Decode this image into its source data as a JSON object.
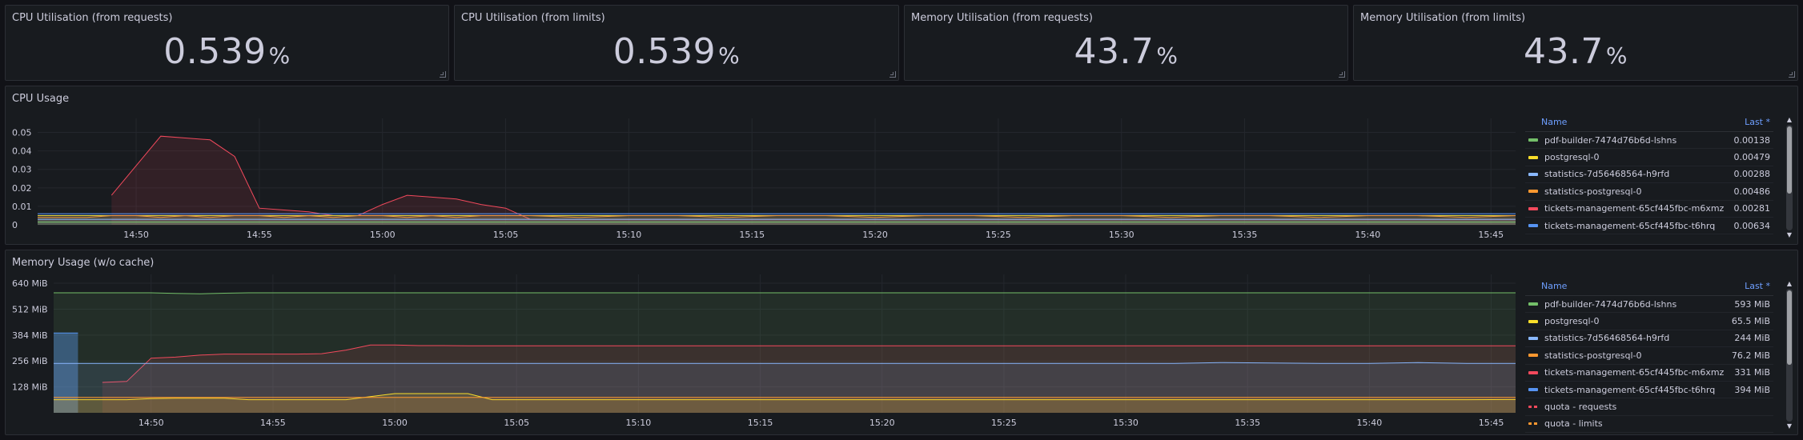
{
  "stats": [
    {
      "title": "CPU Utilisation (from requests)",
      "value": "0.539",
      "unit": "%"
    },
    {
      "title": "CPU Utilisation (from limits)",
      "value": "0.539",
      "unit": "%"
    },
    {
      "title": "Memory Utilisation (from requests)",
      "value": "43.7",
      "unit": "%"
    },
    {
      "title": "Memory Utilisation (from limits)",
      "value": "43.7",
      "unit": "%"
    }
  ],
  "cpu_panel": {
    "title": "CPU Usage",
    "legend_header": {
      "name": "Name",
      "last": "Last *"
    },
    "legend": [
      {
        "name": "pdf-builder-7474d76b6d-lshns",
        "last": "0.00138",
        "color": "#73bf69"
      },
      {
        "name": "postgresql-0",
        "last": "0.00479",
        "color": "#fade2a"
      },
      {
        "name": "statistics-7d56468564-h9rfd",
        "last": "0.00288",
        "color": "#8ab8ff"
      },
      {
        "name": "statistics-postgresql-0",
        "last": "0.00486",
        "color": "#ff9830"
      },
      {
        "name": "tickets-management-65cf445fbc-m6xmz",
        "last": "0.00281",
        "color": "#f2495c"
      },
      {
        "name": "tickets-management-65cf445fbc-t6hrq",
        "last": "0.00634",
        "color": "#5794f2"
      }
    ]
  },
  "mem_panel": {
    "title": "Memory Usage (w/o cache)",
    "legend_header": {
      "name": "Name",
      "last": "Last *"
    },
    "legend": [
      {
        "name": "pdf-builder-7474d76b6d-lshns",
        "last": "593 MiB",
        "color": "#73bf69",
        "style": "solid"
      },
      {
        "name": "postgresql-0",
        "last": "65.5 MiB",
        "color": "#fade2a",
        "style": "solid"
      },
      {
        "name": "statistics-7d56468564-h9rfd",
        "last": "244 MiB",
        "color": "#8ab8ff",
        "style": "solid"
      },
      {
        "name": "statistics-postgresql-0",
        "last": "76.2 MiB",
        "color": "#ff9830",
        "style": "solid"
      },
      {
        "name": "tickets-management-65cf445fbc-m6xmz",
        "last": "331 MiB",
        "color": "#f2495c",
        "style": "solid"
      },
      {
        "name": "tickets-management-65cf445fbc-t6hrq",
        "last": "394 MiB",
        "color": "#5794f2",
        "style": "solid"
      },
      {
        "name": "quota - requests",
        "last": "",
        "color": "#f2495c",
        "style": "dashed"
      },
      {
        "name": "quota - limits",
        "last": "",
        "color": "#ff9830",
        "style": "dashed"
      }
    ]
  },
  "chart_data": [
    {
      "type": "line",
      "title": "CPU Usage",
      "x": [
        "14:46",
        "14:47",
        "14:48",
        "14:49",
        "14:50",
        "14:51",
        "14:52",
        "14:53",
        "14:54",
        "14:55",
        "14:56",
        "14:57",
        "14:58",
        "14:59",
        "15:00",
        "15:01",
        "15:02",
        "15:03",
        "15:04",
        "15:05",
        "15:06",
        "15:08",
        "15:10",
        "15:12",
        "15:14",
        "15:16",
        "15:18",
        "15:20",
        "15:22",
        "15:24",
        "15:26",
        "15:28",
        "15:30",
        "15:32",
        "15:34",
        "15:36",
        "15:38",
        "15:40",
        "15:42",
        "15:44",
        "15:46"
      ],
      "x_ticks": [
        "14:50",
        "14:55",
        "15:00",
        "15:05",
        "15:10",
        "15:15",
        "15:20",
        "15:25",
        "15:30",
        "15:35",
        "15:40",
        "15:45"
      ],
      "y_ticks": [
        "0",
        "0.01",
        "0.02",
        "0.03",
        "0.04",
        "0.05"
      ],
      "ylim": [
        0,
        0.055
      ],
      "series": [
        {
          "name": "tickets-management-65cf445fbc-m6xmz",
          "color": "#f2495c",
          "values": [
            null,
            null,
            null,
            0.016,
            0.032,
            0.048,
            0.047,
            0.046,
            0.037,
            0.009,
            0.008,
            0.007,
            0.005,
            0.005,
            0.011,
            0.016,
            0.015,
            0.014,
            0.011,
            0.009,
            0.003,
            0.003,
            0.003,
            0.003,
            0.003,
            0.003,
            0.003,
            0.003,
            0.003,
            0.003,
            0.003,
            0.003,
            0.003,
            0.003,
            0.003,
            0.003,
            0.003,
            0.003,
            0.003,
            0.003,
            0.003
          ]
        },
        {
          "name": "postgresql-0",
          "color": "#fade2a",
          "values": [
            0.005,
            0.005,
            0.005,
            0.005,
            0.005,
            0.005,
            0.005,
            0.005,
            0.005,
            0.005,
            0.005,
            0.005,
            0.005,
            0.005,
            0.005,
            0.005,
            0.005,
            0.005,
            0.005,
            0.005,
            0.005,
            0.005,
            0.005,
            0.005,
            0.005,
            0.005,
            0.005,
            0.005,
            0.005,
            0.005,
            0.005,
            0.005,
            0.005,
            0.005,
            0.005,
            0.005,
            0.005,
            0.005,
            0.005,
            0.005,
            0.005
          ]
        },
        {
          "name": "statistics-postgresql-0",
          "color": "#ff9830",
          "values": [
            0.004,
            0.004,
            0.004,
            0.005,
            0.005,
            0.004,
            0.005,
            0.004,
            0.005,
            0.005,
            0.004,
            0.005,
            0.004,
            0.005,
            0.005,
            0.004,
            0.005,
            0.004,
            0.005,
            0.005,
            0.005,
            0.004,
            0.005,
            0.005,
            0.004,
            0.005,
            0.005,
            0.004,
            0.005,
            0.005,
            0.004,
            0.005,
            0.005,
            0.004,
            0.005,
            0.005,
            0.004,
            0.005,
            0.005,
            0.004,
            0.005
          ]
        },
        {
          "name": "tickets-management-65cf445fbc-t6hrq",
          "color": "#5794f2",
          "values": [
            0.006,
            0.006,
            0.006,
            0.006,
            0.006,
            0.006,
            0.006,
            0.006,
            0.006,
            0.006,
            0.006,
            0.006,
            0.006,
            0.006,
            0.006,
            0.006,
            0.006,
            0.006,
            0.006,
            0.006,
            0.006,
            0.006,
            0.006,
            0.006,
            0.006,
            0.006,
            0.006,
            0.006,
            0.006,
            0.006,
            0.006,
            0.006,
            0.006,
            0.006,
            0.006,
            0.006,
            0.006,
            0.006,
            0.006,
            0.006,
            0.006
          ]
        },
        {
          "name": "statistics-7d56468564-h9rfd",
          "color": "#8ab8ff",
          "values": [
            0.003,
            0.003,
            0.003,
            0.003,
            0.003,
            0.003,
            0.003,
            0.003,
            0.003,
            0.003,
            0.003,
            0.003,
            0.003,
            0.003,
            0.003,
            0.003,
            0.003,
            0.003,
            0.003,
            0.003,
            0.003,
            0.003,
            0.003,
            0.003,
            0.003,
            0.003,
            0.003,
            0.003,
            0.003,
            0.003,
            0.003,
            0.003,
            0.003,
            0.003,
            0.003,
            0.003,
            0.003,
            0.003,
            0.003,
            0.003,
            0.003
          ]
        },
        {
          "name": "pdf-builder-7474d76b6d-lshns",
          "color": "#73bf69",
          "values": [
            0.0015,
            0.0015,
            0.0015,
            0.0015,
            0.0015,
            0.0015,
            0.0015,
            0.0015,
            0.0015,
            0.0015,
            0.0015,
            0.0015,
            0.0015,
            0.0015,
            0.0015,
            0.0015,
            0.0015,
            0.0015,
            0.0015,
            0.0015,
            0.0015,
            0.0015,
            0.0015,
            0.0015,
            0.0015,
            0.0015,
            0.0015,
            0.0015,
            0.0015,
            0.0015,
            0.0015,
            0.0015,
            0.0015,
            0.0015,
            0.0015,
            0.0015,
            0.0015,
            0.0015,
            0.0015,
            0.0015,
            0.0015
          ]
        }
      ]
    },
    {
      "type": "line",
      "title": "Memory Usage (w/o cache)",
      "x": [
        "14:46",
        "14:47",
        "14:48",
        "14:49",
        "14:50",
        "14:51",
        "14:52",
        "14:53",
        "14:54",
        "14:55",
        "14:56",
        "14:57",
        "14:58",
        "14:59",
        "15:00",
        "15:01",
        "15:02",
        "15:03",
        "15:04",
        "15:05",
        "15:06",
        "15:08",
        "15:10",
        "15:12",
        "15:14",
        "15:16",
        "15:18",
        "15:20",
        "15:22",
        "15:24",
        "15:26",
        "15:28",
        "15:30",
        "15:32",
        "15:34",
        "15:36",
        "15:38",
        "15:40",
        "15:42",
        "15:44",
        "15:46"
      ],
      "x_ticks": [
        "14:50",
        "14:55",
        "15:00",
        "15:05",
        "15:10",
        "15:15",
        "15:20",
        "15:25",
        "15:30",
        "15:35",
        "15:40",
        "15:45"
      ],
      "y_ticks": [
        "128 MiB",
        "256 MiB",
        "384 MiB",
        "512 MiB",
        "640 MiB"
      ],
      "y_tick_values": [
        128,
        256,
        384,
        512,
        640
      ],
      "ylim": [
        0,
        660
      ],
      "ylabel_unit": "MiB",
      "series": [
        {
          "name": "pdf-builder-7474d76b6d-lshns",
          "color": "#73bf69",
          "values": [
            593,
            593,
            593,
            593,
            593,
            590,
            588,
            591,
            593,
            593,
            593,
            593,
            593,
            593,
            593,
            593,
            593,
            593,
            593,
            593,
            593,
            593,
            593,
            593,
            593,
            593,
            593,
            593,
            593,
            593,
            593,
            593,
            593,
            593,
            593,
            593,
            593,
            593,
            593,
            593,
            593
          ]
        },
        {
          "name": "tickets-management-65cf445fbc-t6hrq",
          "color": "#5794f2",
          "values": [
            394,
            394,
            null,
            null,
            null,
            null,
            null,
            null,
            null,
            null,
            null,
            null,
            null,
            null,
            null,
            null,
            null,
            null,
            null,
            null,
            null,
            null,
            null,
            null,
            null,
            null,
            null,
            null,
            null,
            null,
            null,
            null,
            null,
            null,
            null,
            null,
            null,
            null,
            null,
            null,
            394
          ]
        },
        {
          "name": "tickets-management-65cf445fbc-m6xmz",
          "color": "#f2495c",
          "values": [
            null,
            null,
            150,
            155,
            270,
            275,
            285,
            290,
            290,
            290,
            290,
            292,
            310,
            335,
            335,
            332,
            332,
            331,
            331,
            331,
            331,
            331,
            331,
            331,
            331,
            331,
            331,
            331,
            331,
            331,
            331,
            331,
            331,
            331,
            331,
            331,
            331,
            331,
            331,
            331,
            331
          ]
        },
        {
          "name": "statistics-7d56468564-h9rfd",
          "color": "#8ab8ff",
          "values": [
            244,
            244,
            244,
            244,
            244,
            244,
            244,
            244,
            244,
            244,
            244,
            244,
            244,
            244,
            244,
            244,
            244,
            244,
            244,
            244,
            244,
            244,
            244,
            244,
            244,
            244,
            244,
            244,
            244,
            244,
            244,
            244,
            244,
            244,
            248,
            246,
            244,
            244,
            248,
            244,
            244
          ]
        },
        {
          "name": "postgresql-0",
          "color": "#fade2a",
          "values": [
            65,
            65,
            65,
            65,
            70,
            72,
            72,
            72,
            65,
            65,
            65,
            65,
            65,
            80,
            95,
            95,
            95,
            95,
            65,
            65,
            65,
            65,
            65,
            65,
            65,
            65,
            65,
            65,
            65,
            65,
            65,
            65,
            65,
            65,
            65,
            65,
            65,
            65,
            65,
            65,
            65.5
          ]
        },
        {
          "name": "statistics-postgresql-0",
          "color": "#ff9830",
          "values": [
            76,
            76,
            76,
            76,
            76,
            76,
            76,
            76,
            76,
            76,
            76,
            76,
            76,
            76,
            76,
            76,
            76,
            76,
            76,
            76,
            76,
            76,
            76,
            76,
            76,
            76,
            76,
            76,
            76,
            76,
            76,
            76,
            76,
            76,
            76,
            76,
            76,
            76,
            76,
            76,
            76.2
          ]
        }
      ]
    }
  ]
}
